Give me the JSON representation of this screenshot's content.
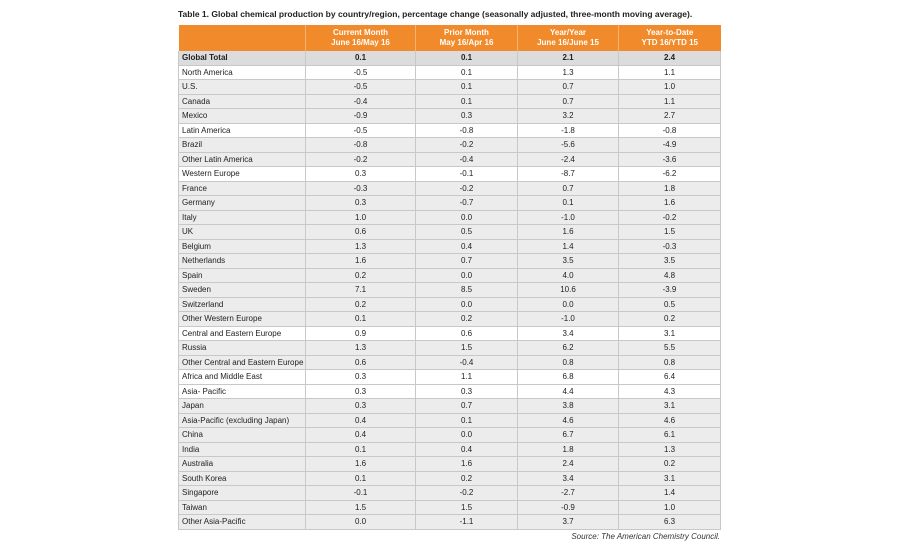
{
  "title": "Table 1. Global chemical production by country/region, percentage change (seasonally adjusted, three-month moving average).",
  "table": {
    "columns": [
      [
        "Current Month",
        "June 16/May 16"
      ],
      [
        "Prior Month",
        "May 16/Apr 16"
      ],
      [
        "Year/Year",
        "June 16/June 15"
      ],
      [
        "Year-to-Date",
        "YTD 16/YTD 15"
      ]
    ],
    "total": [
      "Global Total",
      "0.1",
      "0.1",
      "2.1",
      "2.4"
    ],
    "groups": [
      {
        "cells": [
          "North America",
          "-0.5",
          "0.1",
          "1.3",
          "1.1"
        ],
        "rows": [
          [
            "U.S.",
            "-0.5",
            "0.1",
            "0.7",
            "1.0"
          ],
          [
            "Canada",
            "-0.4",
            "0.1",
            "0.7",
            "1.1"
          ],
          [
            "Mexico",
            "-0.9",
            "0.3",
            "3.2",
            "2.7"
          ]
        ]
      },
      {
        "cells": [
          "Latin America",
          "-0.5",
          "-0.8",
          "-1.8",
          "-0.8"
        ],
        "rows": [
          [
            "Brazil",
            "-0.8",
            "-0.2",
            "-5.6",
            "-4.9"
          ],
          [
            "Other Latin America",
            "-0.2",
            "-0.4",
            "-2.4",
            "-3.6"
          ]
        ]
      },
      {
        "cells": [
          "Western Europe",
          "0.3",
          "-0.1",
          "-8.7",
          "-6.2"
        ],
        "rows": [
          [
            "France",
            "-0.3",
            "-0.2",
            "0.7",
            "1.8"
          ],
          [
            "Germany",
            "0.3",
            "-0.7",
            "0.1",
            "1.6"
          ],
          [
            "Italy",
            "1.0",
            "0.0",
            "-1.0",
            "-0.2"
          ],
          [
            "UK",
            "0.6",
            "0.5",
            "1.6",
            "1.5"
          ],
          [
            "Belgium",
            "1.3",
            "0.4",
            "1.4",
            "-0.3"
          ],
          [
            "Netherlands",
            "1.6",
            "0.7",
            "3.5",
            "3.5"
          ],
          [
            "Spain",
            "0.2",
            "0.0",
            "4.0",
            "4.8"
          ],
          [
            "Sweden",
            "7.1",
            "8.5",
            "10.6",
            "-3.9"
          ],
          [
            "Switzerland",
            "0.2",
            "0.0",
            "0.0",
            "0.5"
          ],
          [
            "Other Western Europe",
            "0.1",
            "0.2",
            "-1.0",
            "0.2"
          ]
        ]
      },
      {
        "cells": [
          "Central and Eastern Europe",
          "0.9",
          "0.6",
          "3.4",
          "3.1"
        ],
        "rows": [
          [
            "Russia",
            "1.3",
            "1.5",
            "6.2",
            "5.5"
          ],
          [
            "Other Central and Eastern Europe",
            "0.6",
            "-0.4",
            "0.8",
            "0.8"
          ]
        ]
      },
      {
        "cells": [
          "Africa and Middle East",
          "0.3",
          "1.1",
          "6.8",
          "6.4"
        ],
        "rows": []
      },
      {
        "cells": [
          "Asia- Pacific",
          "0.3",
          "0.3",
          "4.4",
          "4.3"
        ],
        "rows": [
          [
            "Japan",
            "0.3",
            "0.7",
            "3.8",
            "3.1"
          ],
          [
            "Asia-Pacific (excluding Japan)",
            "0.4",
            "0.1",
            "4.6",
            "4.6"
          ],
          [
            "China",
            "0.4",
            "0.0",
            "6.7",
            "6.1"
          ],
          [
            "India",
            "0.1",
            "0.4",
            "1.8",
            "1.3"
          ],
          [
            "Australia",
            "1.6",
            "1.6",
            "2.4",
            "0.2"
          ],
          [
            "South Korea",
            "0.1",
            "0.2",
            "3.4",
            "3.1"
          ],
          [
            "Singapore",
            "-0.1",
            "-0.2",
            "-2.7",
            "1.4"
          ],
          [
            "Taiwan",
            "1.5",
            "1.5",
            "-0.9",
            "1.0"
          ],
          [
            "Other Asia-Pacific",
            "0.0",
            "-1.1",
            "3.7",
            "6.3"
          ]
        ]
      }
    ]
  },
  "source": "Source: The American Chemistry Council."
}
